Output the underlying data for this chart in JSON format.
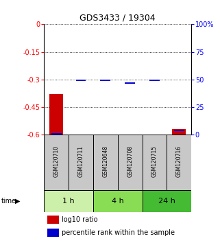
{
  "title": "GDS3433 / 19304",
  "samples": [
    "GSM120710",
    "GSM120711",
    "GSM120648",
    "GSM120708",
    "GSM120715",
    "GSM120716"
  ],
  "groups": [
    {
      "label": "1 h",
      "indices": [
        0,
        1
      ],
      "color": "#ccf0aa"
    },
    {
      "label": "4 h",
      "indices": [
        2,
        3
      ],
      "color": "#88dd55"
    },
    {
      "label": "24 h",
      "indices": [
        4,
        5
      ],
      "color": "#44bb33"
    }
  ],
  "log10_ratio": [
    -0.38,
    -0.6,
    -0.6,
    -0.6,
    -0.6,
    -0.57
  ],
  "percentile_rank": [
    0.01,
    0.49,
    0.49,
    0.47,
    0.495,
    0.04
  ],
  "ylim": [
    -0.6,
    0.0
  ],
  "yticks": [
    0.0,
    -0.15,
    -0.3,
    -0.45,
    -0.6
  ],
  "ytick_labels_left": [
    "0",
    "-0.15",
    "-0.3",
    "-0.45",
    "-0.6"
  ],
  "ytick_labels_right": [
    "100%",
    "75",
    "50",
    "25",
    "0"
  ],
  "bar_color": "#cc0000",
  "percentile_color": "#0000cc",
  "bar_width": 0.55,
  "background_color": "#ffffff",
  "grid_color": "#000000",
  "sample_box_color": "#c8c8c8",
  "legend_ratio_label": "log10 ratio",
  "legend_percentile_label": "percentile rank within the sample"
}
